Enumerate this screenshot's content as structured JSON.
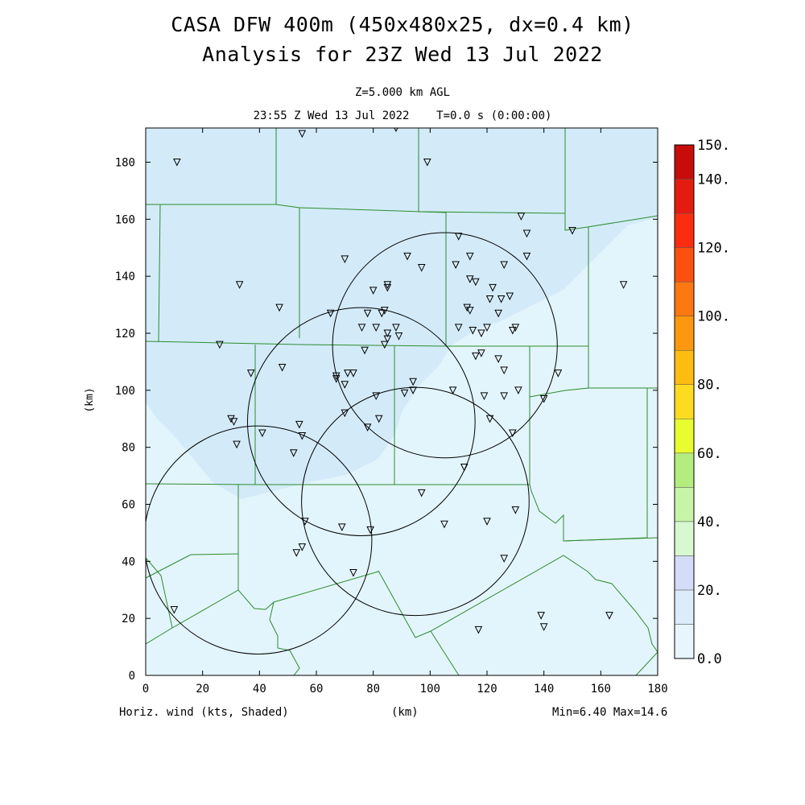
{
  "header": {
    "title_line1": "CASA DFW 400m (450x480x25, dx=0.4 km)",
    "title_line2": "Analysis for 23Z Wed 13 Jul 2022",
    "level": "Z=5.000 km AGL",
    "time_line": "23:55 Z Wed 13 Jul 2022    T=0.0 s (0:00:00)"
  },
  "axes": {
    "x_ticks": [
      0,
      20,
      40,
      60,
      80,
      100,
      120,
      140,
      160,
      180
    ],
    "y_ticks": [
      0,
      20,
      40,
      60,
      80,
      100,
      120,
      140,
      160,
      180
    ],
    "x_label": "(km)",
    "y_label": "(km)",
    "x_range": [
      0,
      180
    ],
    "y_range": [
      0,
      192
    ]
  },
  "footer": {
    "field_label": "Horiz. wind (kts, Shaded)",
    "units": "(km)",
    "minmax": "Min=6.40 Max=14.6"
  },
  "colorbar": {
    "levels": [
      0,
      10,
      20,
      30,
      40,
      50,
      60,
      70,
      80,
      90,
      100,
      110,
      120,
      130,
      140,
      150
    ],
    "colors": [
      "#e6f6fc",
      "#dcecfa",
      "#d4dcf7",
      "#d8f8d0",
      "#c8f4a8",
      "#b4ec80",
      "#e8fc30",
      "#fcdc20",
      "#fcbc10",
      "#fc9810",
      "#fc7810",
      "#fc5010",
      "#fc2c10",
      "#e41c10",
      "#c80c0c",
      "#a80000"
    ],
    "labels": [
      {
        "value": 0,
        "text": "0.0"
      },
      {
        "value": 20,
        "text": "20."
      },
      {
        "value": 40,
        "text": "40."
      },
      {
        "value": 60,
        "text": "60."
      },
      {
        "value": 80,
        "text": "80."
      },
      {
        "value": 100,
        "text": "100."
      },
      {
        "value": 120,
        "text": "120."
      },
      {
        "value": 140,
        "text": "140."
      },
      {
        "value": 150,
        "text": "150."
      }
    ]
  },
  "map_colors": {
    "shade_low": "#e3f5fc",
    "shade_high": "#d3ebf9",
    "county_lines": "#2e8b2e",
    "range_rings": "#000000"
  },
  "radar_rings": [
    {
      "center_km": [
        105.2,
        115.8
      ],
      "radius_km": 39.5
    },
    {
      "center_km": [
        75.8,
        89.0
      ],
      "radius_km": 40.0
    },
    {
      "center_km": [
        39.5,
        47.5
      ],
      "radius_km": 40.0
    },
    {
      "center_km": [
        94.8,
        61.0
      ],
      "radius_km": 40.0
    }
  ],
  "stations_km": [
    [
      11,
      180
    ],
    [
      55,
      190
    ],
    [
      88,
      192
    ],
    [
      99,
      180
    ],
    [
      132,
      161
    ],
    [
      134,
      155
    ],
    [
      150,
      156
    ],
    [
      110,
      154
    ],
    [
      114,
      147
    ],
    [
      134,
      147
    ],
    [
      92,
      147
    ],
    [
      70,
      146
    ],
    [
      97,
      143
    ],
    [
      109,
      144
    ],
    [
      126,
      144
    ],
    [
      114,
      139
    ],
    [
      116,
      138
    ],
    [
      122,
      136
    ],
    [
      33,
      137
    ],
    [
      85,
      137
    ],
    [
      80,
      135
    ],
    [
      85,
      136
    ],
    [
      168,
      137
    ],
    [
      125,
      132
    ],
    [
      121,
      132
    ],
    [
      128,
      133
    ],
    [
      124,
      127
    ],
    [
      113,
      129
    ],
    [
      114,
      128
    ],
    [
      47,
      129
    ],
    [
      65,
      127
    ],
    [
      78,
      127
    ],
    [
      84,
      128
    ],
    [
      83,
      127
    ],
    [
      88,
      122
    ],
    [
      76,
      122
    ],
    [
      81,
      122
    ],
    [
      85,
      120
    ],
    [
      89,
      119
    ],
    [
      85,
      118
    ],
    [
      110,
      122
    ],
    [
      115,
      121
    ],
    [
      118,
      120
    ],
    [
      120,
      122
    ],
    [
      129,
      121
    ],
    [
      130,
      122
    ],
    [
      26,
      116
    ],
    [
      84,
      116
    ],
    [
      77,
      114
    ],
    [
      116,
      112
    ],
    [
      118,
      113
    ],
    [
      124,
      111
    ],
    [
      126,
      107
    ],
    [
      145,
      106
    ],
    [
      37,
      106
    ],
    [
      48,
      108
    ],
    [
      71,
      106
    ],
    [
      73,
      106
    ],
    [
      67,
      105
    ],
    [
      67,
      104
    ],
    [
      70,
      102
    ],
    [
      94,
      103
    ],
    [
      94,
      100
    ],
    [
      91,
      99
    ],
    [
      108,
      100
    ],
    [
      126,
      98
    ],
    [
      131,
      100
    ],
    [
      119,
      98
    ],
    [
      140,
      97
    ],
    [
      81,
      98
    ],
    [
      70,
      92
    ],
    [
      30,
      90
    ],
    [
      31,
      89
    ],
    [
      82,
      90
    ],
    [
      121,
      90
    ],
    [
      54,
      88
    ],
    [
      78,
      87
    ],
    [
      129,
      85
    ],
    [
      55,
      84
    ],
    [
      41,
      85
    ],
    [
      32,
      81
    ],
    [
      52,
      78
    ],
    [
      112,
      73
    ],
    [
      97,
      64
    ],
    [
      130,
      58
    ],
    [
      56,
      54
    ],
    [
      69,
      52
    ],
    [
      79,
      51
    ],
    [
      120,
      54
    ],
    [
      105,
      53
    ],
    [
      55,
      45
    ],
    [
      53,
      43
    ],
    [
      126,
      41
    ],
    [
      73,
      36
    ],
    [
      10,
      23
    ],
    [
      139,
      21
    ],
    [
      163,
      21
    ],
    [
      140,
      17
    ],
    [
      117,
      16
    ]
  ]
}
